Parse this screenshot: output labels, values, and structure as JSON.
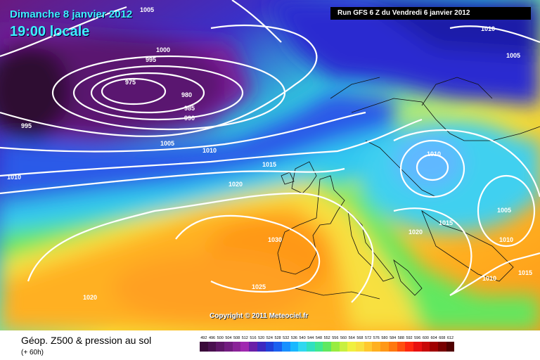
{
  "header": {
    "date": "Dimanche 8 janvier 2012",
    "time": "19:00 locale",
    "run": "Run GFS 6 Z du Vendredi 6 janvier 2012"
  },
  "copyright": "Copyright © 2011 Meteociel.fr",
  "footer": {
    "title": "Géop. Z500 & pression au sol",
    "subtitle": "(+ 60h)"
  },
  "isobar_labels": [
    "1005",
    "1000",
    "995",
    "975",
    "980",
    "985",
    "990",
    "995",
    "1005",
    "1010",
    "1010",
    "1015",
    "1020",
    "1030",
    "1025",
    "1020",
    "1010",
    "1005",
    "1010",
    "1020",
    "1015",
    "1005",
    "1010",
    "1015",
    "1010"
  ],
  "scale": {
    "labels": [
      "492",
      "496",
      "500",
      "504",
      "508",
      "512",
      "516",
      "520",
      "524",
      "528",
      "532",
      "536",
      "540",
      "544",
      "548",
      "552",
      "556",
      "560",
      "564",
      "568",
      "572",
      "576",
      "580",
      "584",
      "588",
      "592",
      "596",
      "600",
      "604",
      "608",
      "612"
    ],
    "colors": [
      "#3a0a3a",
      "#4a1050",
      "#5e1668",
      "#721c80",
      "#8a2298",
      "#a028b0",
      "#6a1ea8",
      "#3c28c0",
      "#2040d8",
      "#1a60f0",
      "#1890ff",
      "#18b8ff",
      "#30d8f0",
      "#30e0c0",
      "#40e890",
      "#60e860",
      "#98ec40",
      "#c8f040",
      "#f0f040",
      "#f8e040",
      "#ffc830",
      "#ffb020",
      "#ff9818",
      "#ff7810",
      "#ff5010",
      "#ff2810",
      "#e81010",
      "#c80808",
      "#a00000",
      "#780000",
      "#500000"
    ]
  }
}
